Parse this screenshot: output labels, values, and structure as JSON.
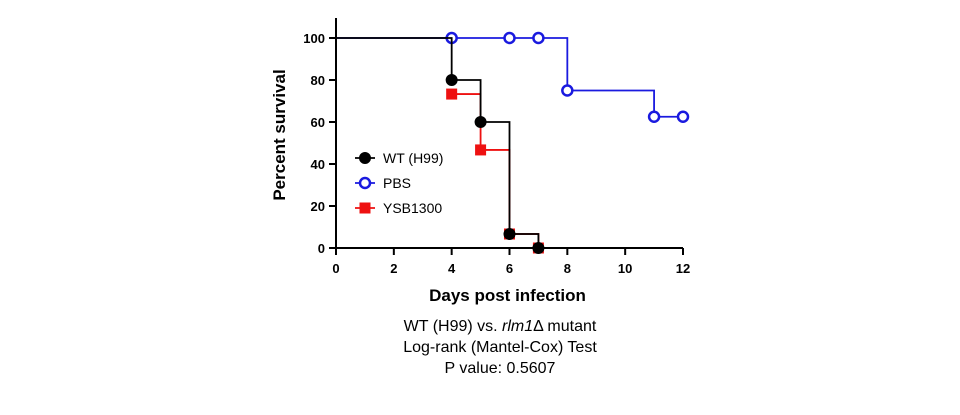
{
  "chart_data": {
    "type": "line",
    "subtype": "kaplan-meier-step",
    "xlabel": "Days post infection",
    "ylabel": "Percent survival",
    "xlim": [
      0,
      12
    ],
    "ylim": [
      0,
      100
    ],
    "xticks": [
      0,
      2,
      4,
      6,
      8,
      10,
      12
    ],
    "yticks": [
      0,
      20,
      40,
      60,
      80,
      100
    ],
    "legend_position": "left",
    "series": [
      {
        "name": "WT (H99)",
        "color": "#000000",
        "marker": "filled-circle",
        "steps": [
          [
            0,
            100
          ],
          [
            4,
            100
          ],
          [
            4,
            80
          ],
          [
            5,
            80
          ],
          [
            5,
            60
          ],
          [
            6,
            60
          ],
          [
            6,
            6.67
          ],
          [
            7,
            6.67
          ],
          [
            7,
            0
          ]
        ],
        "points": [
          [
            4,
            80
          ],
          [
            5,
            60
          ],
          [
            6,
            6.67
          ],
          [
            7,
            0
          ]
        ]
      },
      {
        "name": "PBS",
        "color": "#1a1adf",
        "marker": "open-circle",
        "steps": [
          [
            0,
            100
          ],
          [
            8,
            100
          ],
          [
            8,
            75
          ],
          [
            11,
            75
          ],
          [
            11,
            62.5
          ],
          [
            12,
            62.5
          ]
        ],
        "points": [
          [
            4,
            100
          ],
          [
            6,
            100
          ],
          [
            7,
            100
          ],
          [
            8,
            75
          ],
          [
            11,
            62.5
          ],
          [
            12,
            62.5
          ]
        ]
      },
      {
        "name": "YSB1300",
        "color": "#ee1111",
        "marker": "filled-square",
        "steps": [
          [
            4,
            73.3
          ],
          [
            5,
            73.3
          ],
          [
            5,
            46.7
          ],
          [
            6,
            46.7
          ],
          [
            6,
            6.67
          ],
          [
            7,
            6.67
          ],
          [
            7,
            0
          ]
        ],
        "points": [
          [
            4,
            73.3
          ],
          [
            5,
            46.7
          ],
          [
            6,
            6.67
          ],
          [
            7,
            0
          ]
        ]
      }
    ]
  },
  "caption": {
    "line1_prefix": "WT (H99) vs. ",
    "line1_gene": "rlm1",
    "line1_suffix": "Δ mutant",
    "line2": "Log-rank (Mantel-Cox) Test",
    "line3": "P value: 0.5607"
  }
}
